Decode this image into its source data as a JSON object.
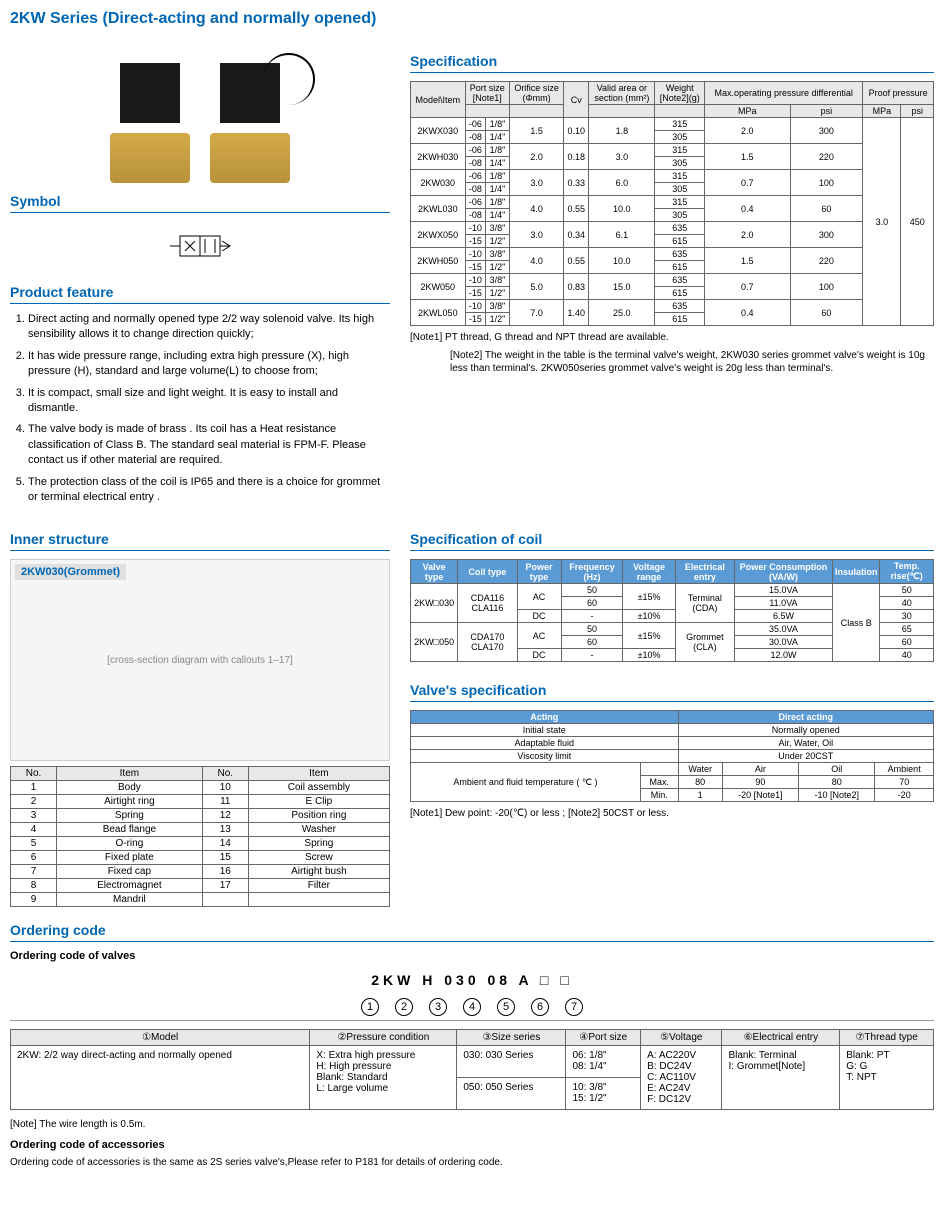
{
  "title": "2KW Series (Direct-acting and normally opened)",
  "sections": {
    "symbol": "Symbol",
    "feature": "Product feature",
    "spec": "Specification",
    "inner": "Inner structure",
    "coil": "Specification of coil",
    "valvespec": "Valve's specification",
    "ordering": "Ordering code"
  },
  "features": [
    "Direct acting and normally opened type 2/2 way solenoid valve. Its high sensibility allows it to change direction quickly;",
    "It has wide pressure range, including extra high pressure (X), high pressure (H), standard and large volume(L) to choose from;",
    "It is compact, small size and light weight. It is easy to install and dismantle.",
    "The valve body is made of brass . Its coil has a Heat resistance classification of Class B. The standard seal material is FPM-F. Please contact us if other material are required.",
    "The protection class of the coil is IP65 and there is a choice for grommet or terminal electrical entry ."
  ],
  "spec_headers": {
    "model": "Model\\Item",
    "port": "Port size",
    "portnote": "[Note1]",
    "orifice": "Orifice size",
    "orificeunit": "(Φmm)",
    "cv": "Cv",
    "valid": "Valid area or",
    "validunit": "section (mm²)",
    "weight": "Weight",
    "weightnote": "[Note2](g)",
    "maxop": "Max.operating pressure differential",
    "proof": "Proof pressure",
    "mpa": "MPa",
    "psi": "psi"
  },
  "spec_rows": [
    {
      "m": "2KWX030",
      "s1": "-06",
      "p1": "1/8\"",
      "s2": "-08",
      "p2": "1/4\"",
      "or": "1.5",
      "cv": "0.10",
      "va": "1.8",
      "w1": "315",
      "w2": "305",
      "mp": "2.0",
      "ps": "300"
    },
    {
      "m": "2KWH030",
      "s1": "-06",
      "p1": "1/8\"",
      "s2": "-08",
      "p2": "1/4\"",
      "or": "2.0",
      "cv": "0.18",
      "va": "3.0",
      "w1": "315",
      "w2": "305",
      "mp": "1.5",
      "ps": "220"
    },
    {
      "m": "2KW030",
      "s1": "-06",
      "p1": "1/8\"",
      "s2": "-08",
      "p2": "1/4\"",
      "or": "3.0",
      "cv": "0.33",
      "va": "6.0",
      "w1": "315",
      "w2": "305",
      "mp": "0.7",
      "ps": "100"
    },
    {
      "m": "2KWL030",
      "s1": "-06",
      "p1": "1/8\"",
      "s2": "-08",
      "p2": "1/4\"",
      "or": "4.0",
      "cv": "0.55",
      "va": "10.0",
      "w1": "315",
      "w2": "305",
      "mp": "0.4",
      "ps": "60"
    },
    {
      "m": "2KWX050",
      "s1": "-10",
      "p1": "3/8\"",
      "s2": "-15",
      "p2": "1/2\"",
      "or": "3.0",
      "cv": "0.34",
      "va": "6.1",
      "w1": "635",
      "w2": "615",
      "mp": "2.0",
      "ps": "300"
    },
    {
      "m": "2KWH050",
      "s1": "-10",
      "p1": "3/8\"",
      "s2": "-15",
      "p2": "1/2\"",
      "or": "4.0",
      "cv": "0.55",
      "va": "10.0",
      "w1": "635",
      "w2": "615",
      "mp": "1.5",
      "ps": "220"
    },
    {
      "m": "2KW050",
      "s1": "-10",
      "p1": "3/8\"",
      "s2": "-15",
      "p2": "1/2\"",
      "or": "5.0",
      "cv": "0.83",
      "va": "15.0",
      "w1": "635",
      "w2": "615",
      "mp": "0.7",
      "ps": "100"
    },
    {
      "m": "2KWL050",
      "s1": "-10",
      "p1": "3/8\"",
      "s2": "-15",
      "p2": "1/2\"",
      "or": "7.0",
      "cv": "1.40",
      "va": "25.0",
      "w1": "635",
      "w2": "615",
      "mp": "0.4",
      "ps": "60"
    }
  ],
  "proof_mpa": "3.0",
  "proof_psi": "450",
  "spec_notes": [
    "[Note1] PT thread, G thread and NPT thread are available.",
    "[Note2] The weight in the table is the terminal valve's weight, 2KW030 series grommet valve's weight is 10g less than terminal's. 2KW050series grommet valve's weight is 20g less than terminal's."
  ],
  "struct_title": "2KW030(Grommet)",
  "parts_h": {
    "no": "No.",
    "item": "Item"
  },
  "parts": [
    [
      "1",
      "Body",
      "10",
      "Coil assembly"
    ],
    [
      "2",
      "Airtight ring",
      "11",
      "E Clip"
    ],
    [
      "3",
      "Spring",
      "12",
      "Position ring"
    ],
    [
      "4",
      "Bead flange",
      "13",
      "Washer"
    ],
    [
      "5",
      "O-ring",
      "14",
      "Spring"
    ],
    [
      "6",
      "Fixed plate",
      "15",
      "Screw"
    ],
    [
      "7",
      "Fixed cap",
      "16",
      "Airtight bush"
    ],
    [
      "8",
      "Electromagnet",
      "17",
      "Filter"
    ],
    [
      "9",
      "Mandril",
      "",
      ""
    ]
  ],
  "coil_h": {
    "vt": "Valve type",
    "ct": "Coil type",
    "pt": "Power type",
    "fr": "Frequency (Hz)",
    "vr": "Voltage range",
    "ee": "Electrical entry",
    "pc": "Power Consumption (VA/W)",
    "ins": "Insulation",
    "tr": "Temp. rise(℃)"
  },
  "coil_rows": [
    {
      "vt": "2KW□030",
      "ct": "CDA116 CLA116",
      "pt": "AC",
      "f1": "50",
      "f2": "60",
      "vr": "±15%",
      "dc": "DC",
      "dcf": "-",
      "dcvr": "±10%",
      "pc1": "15.0VA",
      "pc2": "11.0VA",
      "pc3": "6.5W",
      "t1": "50",
      "t2": "40",
      "t3": "30"
    },
    {
      "vt": "2KW□050",
      "ct": "CDA170 CLA170",
      "pt": "AC",
      "f1": "50",
      "f2": "60",
      "vr": "±15%",
      "dc": "DC",
      "dcf": "-",
      "dcvr": "±10%",
      "pc1": "35.0VA",
      "pc2": "30.0VA",
      "pc3": "12.0W",
      "t1": "65",
      "t2": "60",
      "t3": "40"
    }
  ],
  "coil_ee1": "Terminal (CDA)",
  "coil_ee2": "Grommet (CLA)",
  "coil_ins": "Class B",
  "vspec": {
    "acting_h": "Acting",
    "acting_v": "Direct acting",
    "init_h": "Initial state",
    "init_v": "Normally opened",
    "fluid_h": "Adaptable fluid",
    "fluid_v": "Air, Water, Oil",
    "visc_h": "Viscosity limit",
    "visc_v": "Under 20CST",
    "temp_h": "Ambient and fluid temperature ( ℃ )",
    "water": "Water",
    "air": "Air",
    "oil": "Oil",
    "amb": "Ambient",
    "max": "Max.",
    "min": "Min.",
    "maxv": [
      "80",
      "90",
      "80",
      "70"
    ],
    "minv": [
      "1",
      "-20 [Note1]",
      "-10 [Note2]",
      "-20"
    ]
  },
  "vspec_notes": "[Note1] Dew point: -20(℃) or less ;        [Note2] 50CST or less.",
  "ord": {
    "sub1": "Ordering code of valves",
    "code": "2KW  H  030 08  A  □  □",
    "h": [
      "①Model",
      "②Pressure condition",
      "③Size series",
      "④Port size",
      "⑤Voltage",
      "⑥Electrical entry",
      "⑦Thread type"
    ],
    "c1": "2KW: 2/2 way direct-acting and normally opened",
    "c2": "X: Extra high pressure\nH: High pressure\nBlank: Standard\nL: Large volume",
    "c3a": "030: 030 Series",
    "c3b": "050: 050 Series",
    "c4a": "06: 1/8\"\n08: 1/4\"",
    "c4b": "10: 3/8\"\n15: 1/2\"",
    "c5": "A: AC220V\nB: DC24V\nC: AC110V\nE: AC24V\nF: DC12V",
    "c6": "Blank: Terminal\nI: Grommet[Note]",
    "c7": "Blank: PT\nG: G\nT: NPT",
    "note": "[Note] The wire length is 0.5m.",
    "acc_h": "Ordering code of accessories",
    "acc": "Ordering code of accessories is the same as 2S series valve's,Please refer to P181  for details  of ordering code."
  }
}
